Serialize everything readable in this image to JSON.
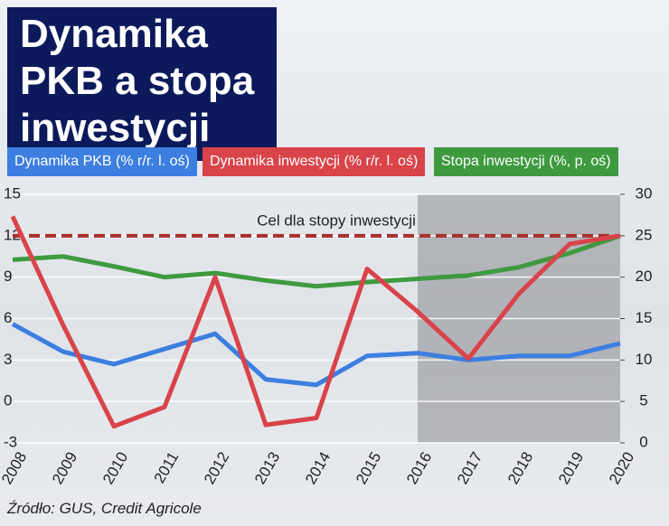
{
  "chart_data": {
    "type": "line",
    "title": "Dynamika PKB a stopa inwestycji",
    "categories": [
      "2008",
      "2009",
      "2010",
      "2011",
      "2012",
      "2013",
      "2014",
      "2015",
      "2016",
      "2017",
      "2018",
      "2019",
      "2020"
    ],
    "series": [
      {
        "name": "Dynamika PKB (% r/r. l. oś)",
        "color": "#3d7fe0",
        "values": [
          5.6,
          3.6,
          2.7,
          3.8,
          4.9,
          1.6,
          1.2,
          3.3,
          3.5,
          3.0,
          3.3,
          3.3,
          4.2
        ]
      },
      {
        "name": "Dynamika inwestycji (% r/r. l. oś)",
        "color": "#d9434a",
        "values": [
          13.4,
          5.5,
          -1.8,
          -0.4,
          9.0,
          -1.7,
          -1.2,
          9.6,
          6.5,
          3.1,
          7.8,
          11.4,
          12.0
        ]
      },
      {
        "name": "Stopa inwestycji (%, p. oś)",
        "color": "#3f9a3f",
        "axis": "y2",
        "values": [
          22.1,
          22.5,
          21.3,
          20.0,
          20.5,
          19.6,
          18.9,
          19.4,
          19.8,
          20.2,
          21.2,
          22.9,
          25.0
        ]
      }
    ],
    "ylim": [
      -3,
      15
    ],
    "yticks": [
      -3,
      0,
      3,
      6,
      9,
      12,
      15
    ],
    "y2lim": [
      0,
      30
    ],
    "y2ticks": [
      0,
      5,
      10,
      15,
      20,
      25,
      30
    ],
    "target": {
      "label": "Cel dla stopy inwestycji",
      "value": 25,
      "axis": "y2",
      "color": "#a8302c"
    },
    "shaded_from": "2016",
    "source": "Źródło: GUS, Credit Agricole"
  }
}
